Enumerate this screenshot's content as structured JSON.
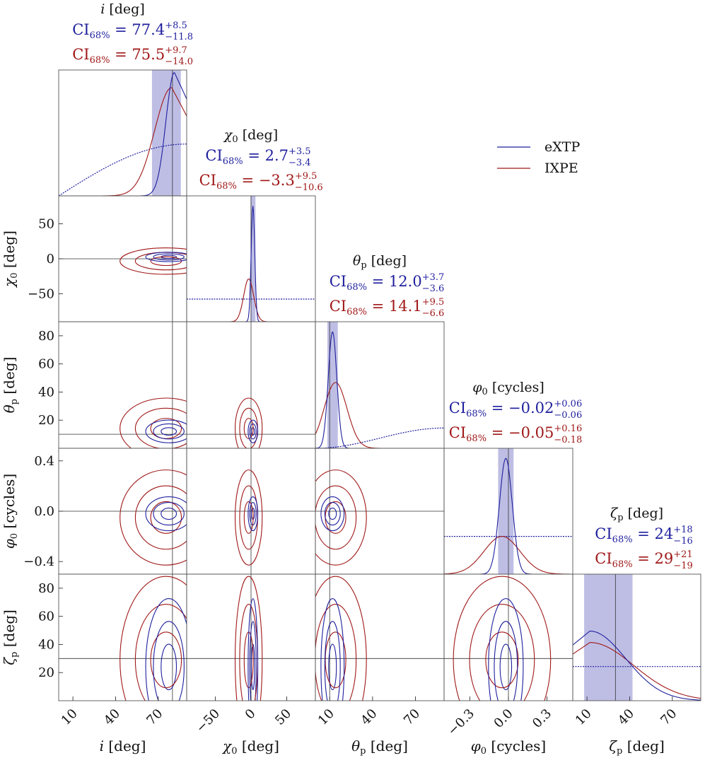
{
  "chart_data": {
    "type": "corner",
    "legend": {
      "placement": "top-right",
      "entries": [
        {
          "name": "eXTP",
          "color": "#1f1f9e"
        },
        {
          "name": "IXPE",
          "color": "#a01818"
        }
      ]
    },
    "colors": {
      "extp": "#1f1f9e",
      "ixpe": "#a01818",
      "band": "#a8a8dc",
      "truth": "#333333",
      "prior": "#1f1f9e"
    },
    "parameters": [
      {
        "id": "i",
        "symbol": "i",
        "subscript": "",
        "unit": "[deg]",
        "range": [
          0,
          90
        ],
        "ticks": [
          10,
          40,
          70
        ],
        "ylabel": "",
        "yticks": [],
        "truth": 80,
        "extp_ci": {
          "prefix": "CI",
          "sub": "68%",
          "value": "77.4",
          "plus": "+8.5",
          "minus": "−11.8",
          "median": 77.4,
          "hi": 85.9,
          "lo": 65.6
        },
        "ixpe_ci": {
          "prefix": "CI",
          "sub": "68%",
          "value": "75.5",
          "plus": "+9.7",
          "minus": "−14.0",
          "median": 75.5,
          "hi": 85.2,
          "lo": 61.5
        }
      },
      {
        "id": "chi0",
        "symbol": "χ",
        "subscript": "0",
        "unit": "[deg]",
        "range": [
          -90,
          90
        ],
        "ticks": [
          -50,
          0,
          50
        ],
        "ylabel": "χ0 [deg]",
        "yticks": [
          50,
          0,
          -50
        ],
        "truth": 0,
        "extp_ci": {
          "prefix": "CI",
          "sub": "68%",
          "value": "2.7",
          "plus": "+3.5",
          "minus": "−3.4",
          "median": 2.7,
          "hi": 6.2,
          "lo": -0.7
        },
        "ixpe_ci": {
          "prefix": "CI",
          "sub": "68%",
          "value": "−3.3",
          "plus": "+9.5",
          "minus": "−10.6",
          "median": -3.3,
          "hi": 6.2,
          "lo": -13.9
        }
      },
      {
        "id": "thetap",
        "symbol": "θ",
        "subscript": "p",
        "unit": "[deg]",
        "range": [
          0,
          90
        ],
        "ticks": [
          10,
          40,
          70
        ],
        "ylabel": "θp [deg]",
        "yticks": [
          80,
          60,
          40,
          20
        ],
        "truth": 10,
        "extp_ci": {
          "prefix": "CI",
          "sub": "68%",
          "value": "12.0",
          "plus": "+3.7",
          "minus": "−3.6",
          "median": 12.0,
          "hi": 15.7,
          "lo": 8.4
        },
        "ixpe_ci": {
          "prefix": "CI",
          "sub": "68%",
          "value": "14.1",
          "plus": "+9.5",
          "minus": "−6.6",
          "median": 14.1,
          "hi": 23.6,
          "lo": 7.5
        }
      },
      {
        "id": "phi0",
        "symbol": "φ",
        "subscript": "0",
        "unit": "[cycles]",
        "range": [
          -0.5,
          0.5
        ],
        "ticks": [
          -0.3,
          0.0,
          0.3
        ],
        "ylabel": "φ0 [cycles]",
        "yticks": [
          0.4,
          0.0,
          -0.4
        ],
        "truth": 0.0,
        "extp_ci": {
          "prefix": "CI",
          "sub": "68%",
          "value": "−0.02",
          "plus": "+0.06",
          "minus": "−0.06",
          "median": -0.02,
          "hi": 0.04,
          "lo": -0.08
        },
        "ixpe_ci": {
          "prefix": "CI",
          "sub": "68%",
          "value": "−0.05",
          "plus": "+0.16",
          "minus": "−0.18",
          "median": -0.05,
          "hi": 0.11,
          "lo": -0.23
        }
      },
      {
        "id": "zetap",
        "symbol": "ζ",
        "subscript": "p",
        "unit": "[deg]",
        "range": [
          0,
          90
        ],
        "ticks": [
          10,
          40,
          70
        ],
        "ylabel": "ζp [deg]",
        "yticks": [
          80,
          60,
          40,
          20
        ],
        "truth": 30,
        "extp_ci": {
          "prefix": "CI",
          "sub": "68%",
          "value": "24",
          "plus": "+18",
          "minus": "−16",
          "median": 24,
          "hi": 42,
          "lo": 8
        },
        "ixpe_ci": {
          "prefix": "CI",
          "sub": "68%",
          "value": "29",
          "plus": "+21",
          "minus": "−19",
          "median": 29,
          "hi": 50,
          "lo": 10
        }
      }
    ]
  }
}
